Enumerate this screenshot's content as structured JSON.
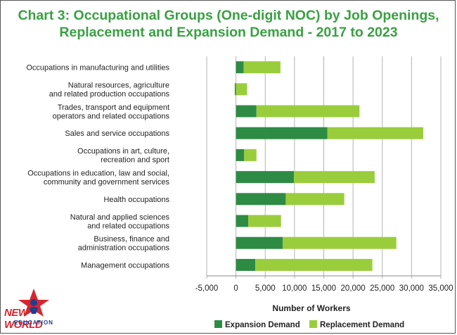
{
  "title_line1": "Chart 3: Occupational Groups (One-digit NOC) by Job Openings,",
  "title_line2": "Replacement and Expansion Demand - 2017 to 2023",
  "colors": {
    "expansion": "#2e8b44",
    "replacement": "#9acd3c",
    "title": "#3aa043",
    "grid": "#b3b3b3"
  },
  "logo": {
    "word": "NEW WORLD",
    "sub": "EDUCATION"
  },
  "chart_data": {
    "type": "bar",
    "orientation": "horizontal",
    "stacked": true,
    "categories": [
      [
        "Occupations in manufacturing and utilities"
      ],
      [
        "Natural resources, agriculture",
        "and related production occupations"
      ],
      [
        "Trades, transport and equipment",
        "operators and related occupations"
      ],
      [
        "Sales and service occupations"
      ],
      [
        "Occupations in art, culture,",
        "recreation and sport"
      ],
      [
        "Occupations in education, law and social,",
        "community and government services"
      ],
      [
        "Health occupations"
      ],
      [
        "Natural and applied sciences",
        "and related occupations"
      ],
      [
        "Business, finance and",
        "administration occupations"
      ],
      [
        "Management occupations"
      ]
    ],
    "series": [
      {
        "name": "Expansion Demand",
        "values": [
          1300,
          -200,
          3500,
          15600,
          1400,
          9900,
          8500,
          2100,
          8000,
          3300
        ]
      },
      {
        "name": "Replacement Demand",
        "values": [
          6300,
          1900,
          17600,
          16400,
          2100,
          13800,
          10000,
          5600,
          19400,
          20000
        ]
      }
    ],
    "xlabel": "Number of Workers",
    "xlim": [
      -5000,
      35000
    ],
    "xticks": [
      "-5,000",
      "0",
      "5,000",
      "10,000",
      "15,000",
      "20,000",
      "25,000",
      "30,000",
      "35,000"
    ],
    "grid": true,
    "legend_position": "bottom"
  }
}
